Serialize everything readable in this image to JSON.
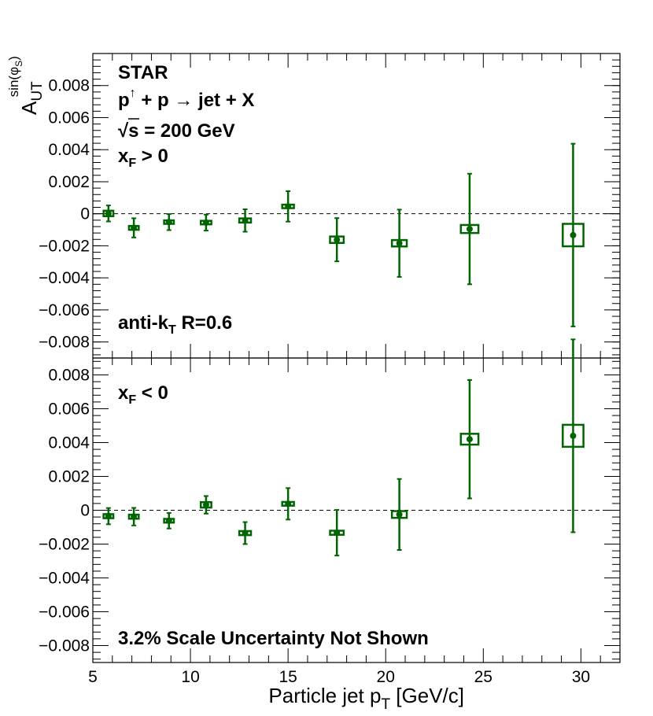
{
  "chart_data": {
    "type": "scatter",
    "x_axis": {
      "label": "Particle jet p",
      "label_subscript": "T",
      "label_suffix": " [GeV/c]",
      "range": [
        5,
        32
      ],
      "major_ticks": [
        5,
        10,
        15,
        20,
        25,
        30
      ],
      "tick_labels": [
        "5",
        "10",
        "15",
        "20",
        "25",
        "30"
      ]
    },
    "y_axis": {
      "label_base": "A",
      "label_subscript": "UT",
      "label_superscript": "sin(φ",
      "label_superscript_sub": "S",
      "label_superscript_close": ")"
    },
    "color": "#006400",
    "panels": [
      {
        "name": "xF > 0",
        "ylim": [
          -0.009,
          0.01
        ],
        "y_ticks": [
          -0.008,
          -0.006,
          -0.004,
          -0.002,
          0,
          0.002,
          0.004,
          0.006,
          0.008
        ],
        "y_tick_labels": [
          "−0.008",
          "−0.006",
          "−0.004",
          "−0.002",
          "0",
          "0.002",
          "0.004",
          "0.006",
          "0.008"
        ],
        "annotations": {
          "experiment": "STAR",
          "reaction_p1": "p",
          "reaction_arrow_up": "↑",
          "reaction_rest": " + p  → jet + X",
          "sqrt": "√",
          "energy": "s = 200 GeV",
          "xf_base": "x",
          "xf_sub": "F",
          "xf_rest": " > 0",
          "algo_base": "anti-k",
          "algo_sub": "T",
          "algo_rest": " R=0.6"
        },
        "points": [
          {
            "x": 5.8,
            "y": 2e-05,
            "stat_err": 0.0005,
            "sys_err": 0.00017,
            "sys_halfwidth": 0.25
          },
          {
            "x": 7.1,
            "y": -0.00088,
            "stat_err": 0.0006,
            "sys_err": 0.00012,
            "sys_halfwidth": 0.25
          },
          {
            "x": 8.9,
            "y": -0.00052,
            "stat_err": 0.0005,
            "sys_err": 0.00011,
            "sys_halfwidth": 0.25
          },
          {
            "x": 10.8,
            "y": -0.00055,
            "stat_err": 0.0005,
            "sys_err": 0.00011,
            "sys_halfwidth": 0.27
          },
          {
            "x": 12.8,
            "y": -0.00042,
            "stat_err": 0.0007,
            "sys_err": 0.00013,
            "sys_halfwidth": 0.3
          },
          {
            "x": 15.0,
            "y": 0.00046,
            "stat_err": 0.00095,
            "sys_err": 0.00011,
            "sys_halfwidth": 0.3
          },
          {
            "x": 17.5,
            "y": -0.00162,
            "stat_err": 0.00135,
            "sys_err": 0.0002,
            "sys_halfwidth": 0.35
          },
          {
            "x": 20.7,
            "y": -0.00184,
            "stat_err": 0.0021,
            "sys_err": 0.0002,
            "sys_halfwidth": 0.38
          },
          {
            "x": 24.3,
            "y": -0.00095,
            "stat_err": 0.00345,
            "sys_err": 0.00025,
            "sys_halfwidth": 0.45
          },
          {
            "x": 29.6,
            "y": -0.00133,
            "stat_err": 0.0057,
            "sys_err": 0.0007,
            "sys_halfwidth": 0.53
          }
        ]
      },
      {
        "name": "xF < 0",
        "ylim": [
          -0.009,
          0.009
        ],
        "y_ticks": [
          -0.008,
          -0.006,
          -0.004,
          -0.002,
          0,
          0.002,
          0.004,
          0.006,
          0.008
        ],
        "y_tick_labels": [
          "−0.008",
          "−0.006",
          "−0.004",
          "−0.002",
          "0",
          "0.002",
          "0.004",
          "0.006",
          "0.008"
        ],
        "annotations": {
          "xf_base": "x",
          "xf_sub": "F",
          "xf_rest": " < 0",
          "scale_note": "3.2% Scale Uncertainty Not Shown"
        },
        "points": [
          {
            "x": 5.8,
            "y": -0.00035,
            "stat_err": 0.00048,
            "sys_err": 0.00012,
            "sys_halfwidth": 0.25
          },
          {
            "x": 7.1,
            "y": -0.00038,
            "stat_err": 0.00052,
            "sys_err": 0.00012,
            "sys_halfwidth": 0.25
          },
          {
            "x": 8.9,
            "y": -0.00062,
            "stat_err": 0.00046,
            "sys_err": 0.00011,
            "sys_halfwidth": 0.25
          },
          {
            "x": 10.8,
            "y": 0.00032,
            "stat_err": 0.00052,
            "sys_err": 0.00016,
            "sys_halfwidth": 0.27
          },
          {
            "x": 12.8,
            "y": -0.00135,
            "stat_err": 0.00065,
            "sys_err": 0.00012,
            "sys_halfwidth": 0.3
          },
          {
            "x": 15.0,
            "y": 0.00038,
            "stat_err": 0.00093,
            "sys_err": 0.00011,
            "sys_halfwidth": 0.3
          },
          {
            "x": 17.5,
            "y": -0.00133,
            "stat_err": 0.00135,
            "sys_err": 0.00012,
            "sys_halfwidth": 0.35
          },
          {
            "x": 20.7,
            "y": -0.00025,
            "stat_err": 0.0021,
            "sys_err": 0.0002,
            "sys_halfwidth": 0.38
          },
          {
            "x": 24.3,
            "y": 0.0042,
            "stat_err": 0.0035,
            "sys_err": 0.00032,
            "sys_halfwidth": 0.45
          },
          {
            "x": 29.6,
            "y": 0.0044,
            "stat_err": 0.0057,
            "sys_err": 0.00065,
            "sys_halfwidth": 0.53
          }
        ]
      }
    ]
  }
}
